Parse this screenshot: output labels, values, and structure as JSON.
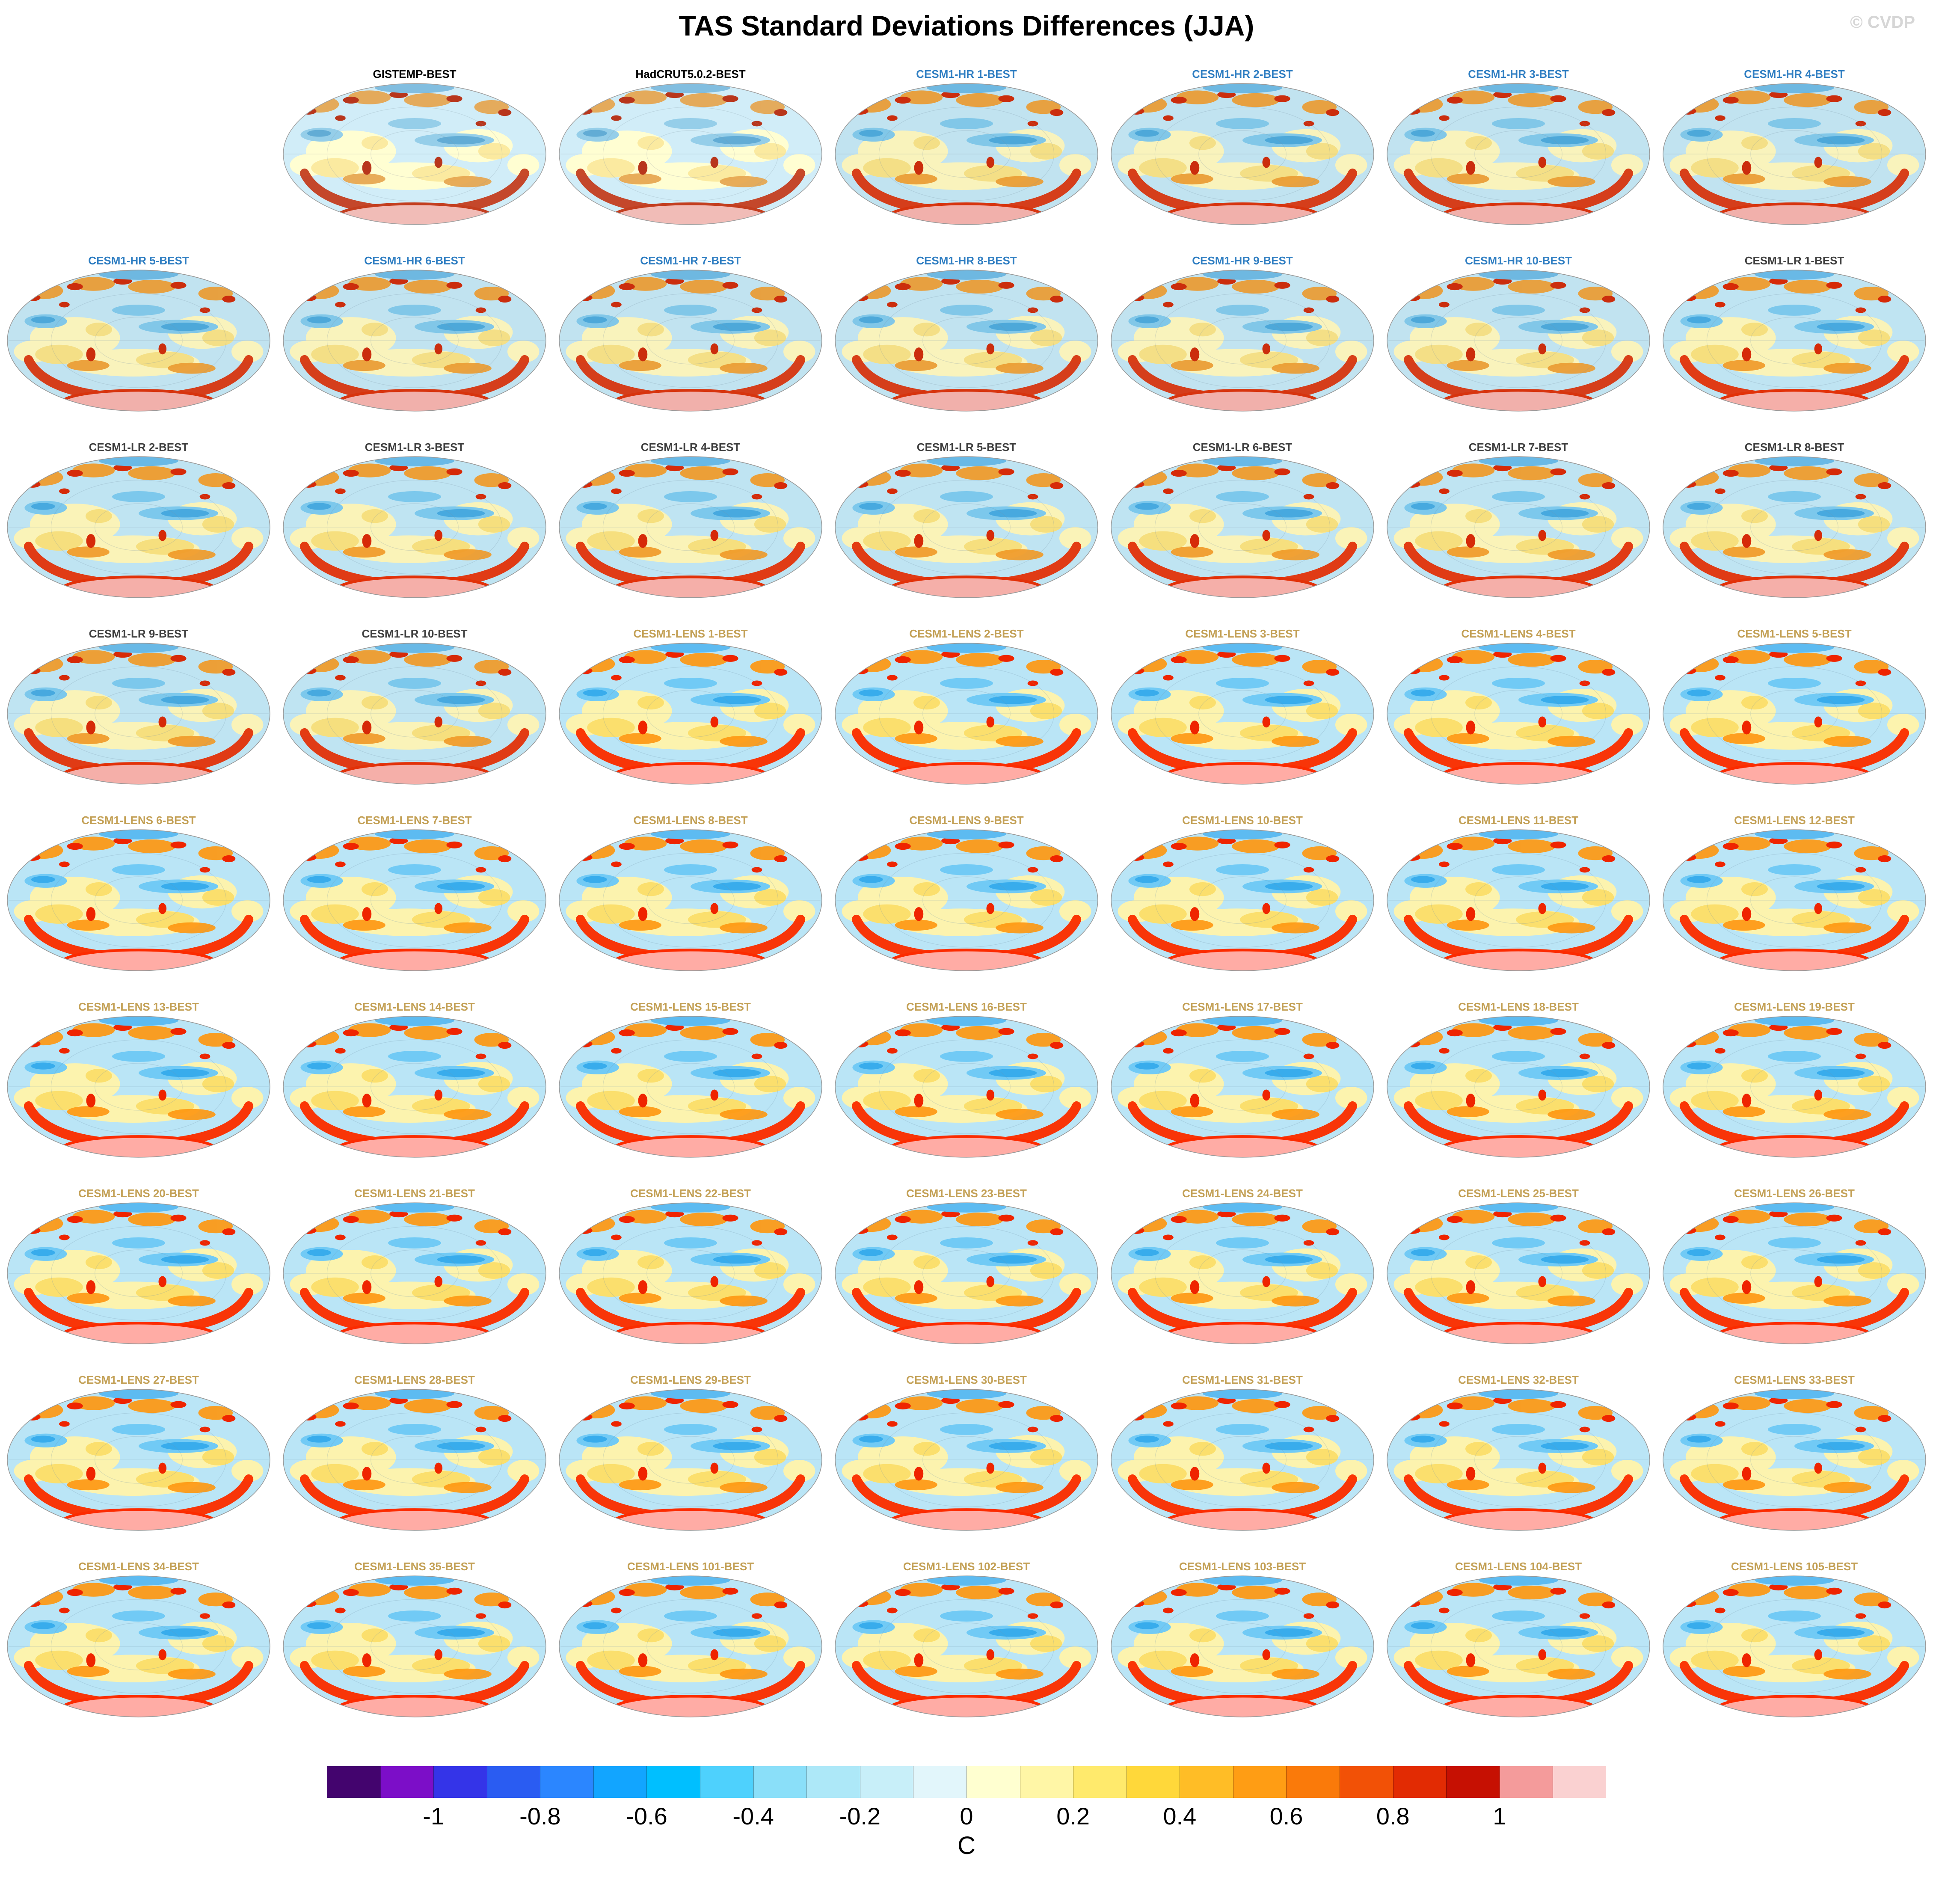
{
  "title": "TAS Standard Deviations Differences (JJA)",
  "watermark": "© CVDP",
  "grid": {
    "columns": 7,
    "leading_empty_cells": 1
  },
  "label_colors": {
    "obs": "#000000",
    "hr": "#2F7EC2",
    "lr": "#3F3F3F",
    "lens": "#C3A055"
  },
  "chart_data": {
    "type": "heatmap",
    "title": "TAS Standard Deviations Differences (JJA)",
    "variable": "TAS",
    "season": "JJA",
    "layout": {
      "rows": 9,
      "columns": 7
    },
    "panels": [
      {
        "label": "GISTEMP-BEST",
        "group": "obs"
      },
      {
        "label": "HadCRUT5.0.2-BEST",
        "group": "obs"
      },
      {
        "label": "CESM1-HR 1-BEST",
        "group": "hr"
      },
      {
        "label": "CESM1-HR 2-BEST",
        "group": "hr"
      },
      {
        "label": "CESM1-HR 3-BEST",
        "group": "hr"
      },
      {
        "label": "CESM1-HR 4-BEST",
        "group": "hr"
      },
      {
        "label": "CESM1-HR 5-BEST",
        "group": "hr"
      },
      {
        "label": "CESM1-HR 6-BEST",
        "group": "hr"
      },
      {
        "label": "CESM1-HR 7-BEST",
        "group": "hr"
      },
      {
        "label": "CESM1-HR 8-BEST",
        "group": "hr"
      },
      {
        "label": "CESM1-HR 9-BEST",
        "group": "hr"
      },
      {
        "label": "CESM1-HR 10-BEST",
        "group": "hr"
      },
      {
        "label": "CESM1-LR 1-BEST",
        "group": "lr"
      },
      {
        "label": "CESM1-LR 2-BEST",
        "group": "lr"
      },
      {
        "label": "CESM1-LR 3-BEST",
        "group": "lr"
      },
      {
        "label": "CESM1-LR 4-BEST",
        "group": "lr"
      },
      {
        "label": "CESM1-LR 5-BEST",
        "group": "lr"
      },
      {
        "label": "CESM1-LR 6-BEST",
        "group": "lr"
      },
      {
        "label": "CESM1-LR 7-BEST",
        "group": "lr"
      },
      {
        "label": "CESM1-LR 8-BEST",
        "group": "lr"
      },
      {
        "label": "CESM1-LR 9-BEST",
        "group": "lr"
      },
      {
        "label": "CESM1-LR 10-BEST",
        "group": "lr"
      },
      {
        "label": "CESM1-LENS 1-BEST",
        "group": "lens"
      },
      {
        "label": "CESM1-LENS 2-BEST",
        "group": "lens"
      },
      {
        "label": "CESM1-LENS 3-BEST",
        "group": "lens"
      },
      {
        "label": "CESM1-LENS 4-BEST",
        "group": "lens"
      },
      {
        "label": "CESM1-LENS 5-BEST",
        "group": "lens"
      },
      {
        "label": "CESM1-LENS 6-BEST",
        "group": "lens"
      },
      {
        "label": "CESM1-LENS 7-BEST",
        "group": "lens"
      },
      {
        "label": "CESM1-LENS 8-BEST",
        "group": "lens"
      },
      {
        "label": "CESM1-LENS 9-BEST",
        "group": "lens"
      },
      {
        "label": "CESM1-LENS 10-BEST",
        "group": "lens"
      },
      {
        "label": "CESM1-LENS 11-BEST",
        "group": "lens"
      },
      {
        "label": "CESM1-LENS 12-BEST",
        "group": "lens"
      },
      {
        "label": "CESM1-LENS 13-BEST",
        "group": "lens"
      },
      {
        "label": "CESM1-LENS 14-BEST",
        "group": "lens"
      },
      {
        "label": "CESM1-LENS 15-BEST",
        "group": "lens"
      },
      {
        "label": "CESM1-LENS 16-BEST",
        "group": "lens"
      },
      {
        "label": "CESM1-LENS 17-BEST",
        "group": "lens"
      },
      {
        "label": "CESM1-LENS 18-BEST",
        "group": "lens"
      },
      {
        "label": "CESM1-LENS 19-BEST",
        "group": "lens"
      },
      {
        "label": "CESM1-LENS 20-BEST",
        "group": "lens"
      },
      {
        "label": "CESM1-LENS 21-BEST",
        "group": "lens"
      },
      {
        "label": "CESM1-LENS 22-BEST",
        "group": "lens"
      },
      {
        "label": "CESM1-LENS 23-BEST",
        "group": "lens"
      },
      {
        "label": "CESM1-LENS 24-BEST",
        "group": "lens"
      },
      {
        "label": "CESM1-LENS 25-BEST",
        "group": "lens"
      },
      {
        "label": "CESM1-LENS 26-BEST",
        "group": "lens"
      },
      {
        "label": "CESM1-LENS 27-BEST",
        "group": "lens"
      },
      {
        "label": "CESM1-LENS 28-BEST",
        "group": "lens"
      },
      {
        "label": "CESM1-LENS 29-BEST",
        "group": "lens"
      },
      {
        "label": "CESM1-LENS 30-BEST",
        "group": "lens"
      },
      {
        "label": "CESM1-LENS 31-BEST",
        "group": "lens"
      },
      {
        "label": "CESM1-LENS 32-BEST",
        "group": "lens"
      },
      {
        "label": "CESM1-LENS 33-BEST",
        "group": "lens"
      },
      {
        "label": "CESM1-LENS 34-BEST",
        "group": "lens"
      },
      {
        "label": "CESM1-LENS 35-BEST",
        "group": "lens"
      },
      {
        "label": "CESM1-LENS 101-BEST",
        "group": "lens"
      },
      {
        "label": "CESM1-LENS 102-BEST",
        "group": "lens"
      },
      {
        "label": "CESM1-LENS 103-BEST",
        "group": "lens"
      },
      {
        "label": "CESM1-LENS 104-BEST",
        "group": "lens"
      },
      {
        "label": "CESM1-LENS 105-BEST",
        "group": "lens"
      }
    ],
    "colorbar": {
      "units": "C",
      "min": -1.2,
      "max": 1.2,
      "segment_colors": [
        "#43046E",
        "#7C0EC8",
        "#3434E8",
        "#2A5CF2",
        "#2B86FF",
        "#12A5FF",
        "#00BFFF",
        "#4ED1FD",
        "#8ADFF9",
        "#ADE8F8",
        "#C8EFF9",
        "#E2F6FB",
        "#FFFFD0",
        "#FFF6A6",
        "#FFEA6C",
        "#FFD83A",
        "#FFBD26",
        "#FF9D14",
        "#FA7A0A",
        "#F25106",
        "#E22B03",
        "#C61002",
        "#F49B9B",
        "#FAD1D1"
      ],
      "ticks": [
        {
          "value": -1.0,
          "label": "-1"
        },
        {
          "value": -0.8,
          "label": "-0.8"
        },
        {
          "value": -0.6,
          "label": "-0.6"
        },
        {
          "value": -0.4,
          "label": "-0.4"
        },
        {
          "value": -0.2,
          "label": "-0.2"
        },
        {
          "value": 0.0,
          "label": "0"
        },
        {
          "value": 0.2,
          "label": "0.2"
        },
        {
          "value": 0.4,
          "label": "0.4"
        },
        {
          "value": 0.6,
          "label": "0.6"
        },
        {
          "value": 0.8,
          "label": "0.8"
        },
        {
          "value": 1.0,
          "label": "1"
        }
      ]
    }
  }
}
